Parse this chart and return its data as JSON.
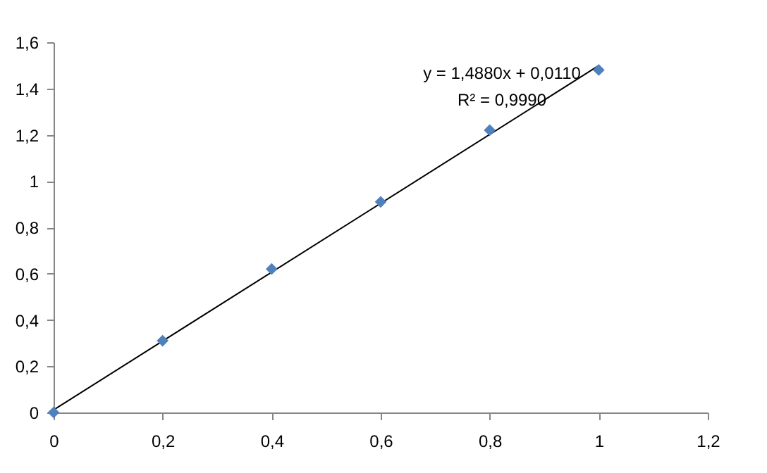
{
  "chart_data": {
    "type": "scatter",
    "x": [
      0,
      0.2,
      0.4,
      0.6,
      0.8,
      1
    ],
    "series": [
      {
        "color": "#4f81bd",
        "values": [
          0,
          0.31,
          0.62,
          0.91,
          1.22,
          1.48
        ]
      },
      {
        "type": "line",
        "marker": "none",
        "color": "#000000",
        "x": [
          0,
          1
        ],
        "values": [
          0.011,
          1.499
        ]
      }
    ],
    "marker": "diamond",
    "xlim": [
      0,
      1.2
    ],
    "xticks": [
      0,
      {
        "value": 0.2,
        "label": "0,2"
      },
      {
        "value": 0.4,
        "label": "0,4"
      },
      {
        "value": 0.6,
        "label": "0,6"
      },
      {
        "value": 0.8,
        "label": "0,8"
      },
      1,
      {
        "value": 1.2,
        "label": "1,2"
      }
    ],
    "ylim": [
      0,
      1.6
    ],
    "yticks": [
      0,
      {
        "value": 0.2,
        "label": "0,2"
      },
      {
        "value": 0.4,
        "label": "0,4"
      },
      {
        "value": 0.6,
        "label": "0,6"
      },
      {
        "value": 0.8,
        "label": "0,8"
      },
      1,
      {
        "value": 1.2,
        "label": "1,2"
      },
      {
        "value": 1.4,
        "label": "1,4"
      },
      {
        "value": 1.6,
        "label": "1,6"
      }
    ],
    "grid": false,
    "legend": false,
    "annotations": [
      "y = 1,4880x + 0,0110",
      "R² = 0,9990"
    ]
  }
}
